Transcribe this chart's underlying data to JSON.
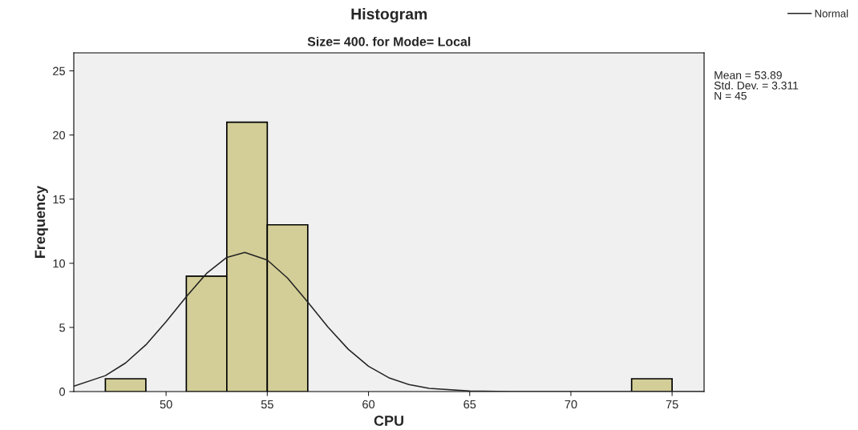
{
  "chart_data": {
    "type": "histogram",
    "title": "Histogram",
    "subtitle": "Size= 400. for Mode= Local",
    "xlabel": "CPU",
    "ylabel": "Frequency",
    "bins": [
      47,
      49,
      51,
      53,
      55,
      57,
      59,
      61,
      63,
      65,
      67,
      69,
      71,
      73,
      75
    ],
    "values": [
      1,
      0,
      9,
      21,
      13,
      0,
      0,
      0,
      0,
      0,
      0,
      0,
      0,
      1
    ],
    "color": "#d3ce97",
    "series": [
      {
        "name": "Normal",
        "type": "line",
        "color": "#222222",
        "x": [
          45.44,
          47,
          48,
          49,
          50,
          51,
          52,
          53,
          53.89,
          55,
          56,
          57,
          58,
          59,
          60,
          61,
          62,
          63,
          65,
          67,
          70,
          76.58
        ],
        "values": [
          0.42,
          1.24,
          2.23,
          3.64,
          5.44,
          7.4,
          9.21,
          10.46,
          10.84,
          10.25,
          8.85,
          6.97,
          5.02,
          3.3,
          1.97,
          1.08,
          0.54,
          0.25,
          0.04,
          0,
          0,
          0
        ]
      }
    ],
    "xlim": [
      45.44,
      76.58
    ],
    "ylim": [
      0,
      26.4
    ],
    "xticks": [
      50,
      55,
      60,
      65,
      70,
      75
    ],
    "yticks": [
      0,
      5,
      10,
      15,
      20,
      25
    ],
    "grid": false,
    "legend": "top right",
    "annotations": [
      "Mean = 53.89",
      "Std. Dev. = 3.311",
      "N = 45"
    ]
  }
}
